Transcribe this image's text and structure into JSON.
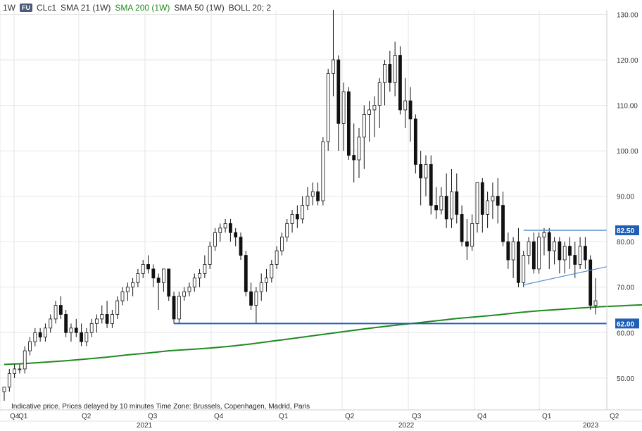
{
  "header": {
    "interval": "1W",
    "badge": "FU",
    "symbol": "CLc1",
    "sma21": "SMA 21 (1W)",
    "sma200": "SMA 200 (1W)",
    "sma50": "SMA 50 (1W)",
    "boll": "BOLL 20; 2"
  },
  "footer_note": "Indicative price. Prices delayed by 10 minutes    Time Zone: Brussels, Copenhagen, Madrid, Paris",
  "colors": {
    "sma200": "#1f8a1f",
    "levels": "#1f5fb4",
    "trendline": "#5b8fd0",
    "up_candle": "#ffffff",
    "down_candle": "#111111"
  },
  "chart_data": {
    "type": "candlestick",
    "y_ticks": [
      "50.00",
      "60.00",
      "70.00",
      "80.00",
      "90.00",
      "100.00",
      "110.00",
      "120.00",
      "130.00"
    ],
    "x_quarter_labels": [
      "Q4",
      "Q1",
      "Q2",
      "Q3",
      "Q4",
      "Q1",
      "Q2",
      "Q3",
      "Q4",
      "Q1",
      "Q2"
    ],
    "x_year_labels": [
      "2021",
      "2022",
      "2023"
    ],
    "ylim": [
      43,
      131
    ],
    "level_labels": [
      "82.50",
      "62.00"
    ],
    "levels": [
      82.5,
      62.0
    ],
    "candles": [
      [
        47,
        48,
        45,
        48
      ],
      [
        48,
        52,
        47,
        51
      ],
      [
        51,
        53,
        50,
        52
      ],
      [
        52,
        53,
        51,
        52
      ],
      [
        52,
        57,
        51,
        56
      ],
      [
        56,
        59,
        55,
        58
      ],
      [
        58,
        61,
        57,
        60
      ],
      [
        60,
        61,
        58,
        59
      ],
      [
        59,
        62,
        58,
        61
      ],
      [
        61,
        64,
        60,
        63
      ],
      [
        63,
        67,
        62,
        66
      ],
      [
        66,
        68,
        63,
        64
      ],
      [
        64,
        65,
        59,
        60
      ],
      [
        60,
        62,
        58,
        61
      ],
      [
        61,
        63,
        59,
        60
      ],
      [
        60,
        62,
        57,
        58
      ],
      [
        58,
        61,
        57,
        60
      ],
      [
        60,
        63,
        59,
        62
      ],
      [
        62,
        64,
        60,
        63
      ],
      [
        63,
        66,
        62,
        64
      ],
      [
        64,
        67,
        61,
        62
      ],
      [
        62,
        65,
        61,
        64
      ],
      [
        64,
        68,
        63,
        67
      ],
      [
        67,
        70,
        66,
        69
      ],
      [
        69,
        71,
        67,
        70
      ],
      [
        70,
        72,
        68,
        71
      ],
      [
        71,
        74,
        70,
        73
      ],
      [
        73,
        76,
        72,
        75
      ],
      [
        75,
        77,
        73,
        74
      ],
      [
        74,
        75,
        70,
        72
      ],
      [
        72,
        73,
        65,
        71
      ],
      [
        71,
        74,
        69,
        74
      ],
      [
        74,
        74,
        67,
        68
      ],
      [
        68,
        69,
        62,
        63
      ],
      [
        63,
        69,
        62,
        68
      ],
      [
        68,
        70,
        67,
        69
      ],
      [
        69,
        71,
        68,
        70
      ],
      [
        70,
        73,
        69,
        72
      ],
      [
        72,
        74,
        70,
        73
      ],
      [
        73,
        77,
        72,
        75
      ],
      [
        75,
        80,
        74,
        79
      ],
      [
        79,
        83,
        78,
        82
      ],
      [
        82,
        84,
        80,
        83
      ],
      [
        83,
        85,
        82,
        84
      ],
      [
        84,
        85,
        80,
        82
      ],
      [
        82,
        83,
        79,
        81
      ],
      [
        81,
        82,
        76,
        77
      ],
      [
        77,
        78,
        68,
        69
      ],
      [
        69,
        71,
        65,
        66
      ],
      [
        66,
        70,
        62,
        69
      ],
      [
        69,
        73,
        67,
        71
      ],
      [
        71,
        74,
        69,
        72
      ],
      [
        72,
        76,
        71,
        75
      ],
      [
        75,
        79,
        74,
        78
      ],
      [
        78,
        82,
        77,
        81
      ],
      [
        81,
        85,
        80,
        84
      ],
      [
        84,
        87,
        82,
        86
      ],
      [
        86,
        88,
        83,
        85
      ],
      [
        85,
        90,
        84,
        88
      ],
      [
        88,
        92,
        87,
        90
      ],
      [
        90,
        93,
        88,
        91
      ],
      [
        91,
        93,
        88,
        89
      ],
      [
        89,
        103,
        88,
        102
      ],
      [
        102,
        118,
        100,
        117
      ],
      [
        117,
        131,
        112,
        120
      ],
      [
        120,
        121,
        100,
        106
      ],
      [
        106,
        115,
        100,
        113
      ],
      [
        113,
        114,
        98,
        99
      ],
      [
        99,
        106,
        93,
        98
      ],
      [
        98,
        105,
        94,
        103
      ],
      [
        103,
        110,
        96,
        108
      ],
      [
        108,
        111,
        102,
        109
      ],
      [
        109,
        112,
        103,
        110
      ],
      [
        110,
        116,
        105,
        115
      ],
      [
        115,
        120,
        110,
        119
      ],
      [
        119,
        122,
        113,
        115
      ],
      [
        115,
        124,
        112,
        121
      ],
      [
        121,
        123,
        108,
        109
      ],
      [
        109,
        116,
        105,
        111
      ],
      [
        111,
        114,
        102,
        107
      ],
      [
        107,
        108,
        95,
        97
      ],
      [
        97,
        100,
        88,
        94
      ],
      [
        94,
        99,
        90,
        97
      ],
      [
        97,
        99,
        86,
        88
      ],
      [
        88,
        92,
        85,
        87
      ],
      [
        87,
        92,
        86,
        90
      ],
      [
        90,
        95,
        83,
        85
      ],
      [
        85,
        96,
        83,
        91
      ],
      [
        91,
        95,
        84,
        86
      ],
      [
        86,
        88,
        79,
        80
      ],
      [
        80,
        85,
        76,
        79
      ],
      [
        79,
        86,
        78,
        84
      ],
      [
        84,
        93,
        82,
        93
      ],
      [
        93,
        94,
        82,
        86
      ],
      [
        86,
        91,
        83,
        89
      ],
      [
        89,
        93,
        85,
        90
      ],
      [
        90,
        94,
        84,
        88
      ],
      [
        88,
        91,
        79,
        80
      ],
      [
        80,
        82,
        74,
        76
      ],
      [
        76,
        81,
        72,
        80
      ],
      [
        80,
        83,
        70,
        71
      ],
      [
        71,
        78,
        70,
        77
      ],
      [
        77,
        81,
        75,
        80
      ],
      [
        80,
        82,
        73,
        74
      ],
      [
        74,
        82,
        73,
        81
      ],
      [
        81,
        83,
        77,
        82
      ],
      [
        82,
        83,
        74,
        78
      ],
      [
        78,
        81,
        75,
        80
      ],
      [
        80,
        81,
        73,
        76
      ],
      [
        76,
        80,
        73,
        79
      ],
      [
        79,
        81,
        74,
        77
      ],
      [
        77,
        80,
        72,
        75
      ],
      [
        75,
        81,
        74,
        79
      ],
      [
        79,
        81,
        74,
        76
      ],
      [
        76,
        77,
        65,
        66
      ],
      [
        66,
        72,
        64,
        67
      ]
    ],
    "sma200_y": [
      53,
      53.2,
      53.5,
      53.8,
      54.2,
      54.6,
      55.1,
      55.5,
      56,
      56.3,
      56.6,
      57,
      57.5,
      58.1,
      58.7,
      59.3,
      59.9,
      60.5,
      61.1,
      61.6,
      62.1,
      62.6,
      63.1,
      63.5,
      63.9,
      64.4,
      64.8,
      65.1,
      65.4,
      65.7,
      65.9,
      66.1,
      66.3
    ],
    "sma200_x": [
      0,
      4,
      8,
      12,
      16,
      20,
      24,
      28,
      32,
      36,
      40,
      44,
      48,
      52,
      56,
      60,
      64,
      68,
      72,
      76,
      80,
      84,
      88,
      92,
      96,
      100,
      104,
      108,
      112,
      116,
      120,
      124,
      127
    ],
    "trendline": [
      [
        101,
        70.5
      ],
      [
        125,
        74.5
      ]
    ]
  }
}
